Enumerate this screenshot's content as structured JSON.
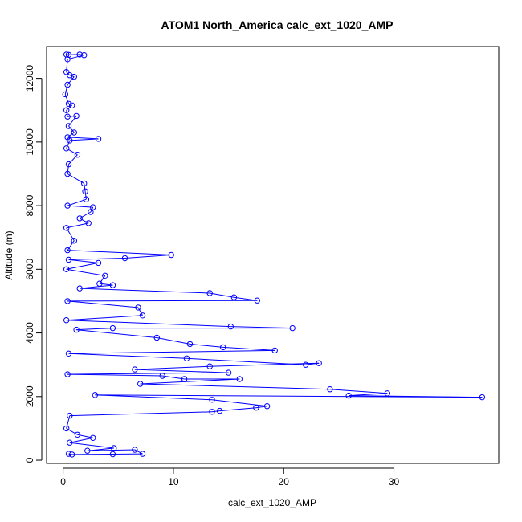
{
  "chart_data": {
    "type": "line",
    "title": "ATOM1 North_America calc_ext_1020_AMP",
    "xlabel": "calc_ext_1020_AMP",
    "ylabel": "Altitude (m)",
    "xlim": [
      -1.5,
      39.5
    ],
    "ylim": [
      -100,
      13000
    ],
    "xticks": [
      0,
      10,
      20,
      30
    ],
    "yticks": [
      0,
      2000,
      4000,
      6000,
      8000,
      10000,
      12000
    ],
    "grid": false,
    "line_color": "#0000ff",
    "marker": "open-circle",
    "series": [
      {
        "values": [
          [
            0.3,
            12750
          ],
          [
            0.5,
            12740
          ],
          [
            1.5,
            12750
          ],
          [
            1.9,
            12730
          ],
          [
            0.4,
            12600
          ],
          [
            0.3,
            12200
          ],
          [
            0.6,
            12100
          ],
          [
            1.0,
            12050
          ],
          [
            0.4,
            11800
          ],
          [
            0.2,
            11500
          ],
          [
            0.5,
            11200
          ],
          [
            0.8,
            11150
          ],
          [
            0.3,
            11000
          ],
          [
            0.4,
            10800
          ],
          [
            1.2,
            10820
          ],
          [
            0.5,
            10500
          ],
          [
            1.0,
            10300
          ],
          [
            0.4,
            10150
          ],
          [
            3.2,
            10100
          ],
          [
            0.6,
            10050
          ],
          [
            0.3,
            9800
          ],
          [
            1.3,
            9600
          ],
          [
            0.5,
            9300
          ],
          [
            0.4,
            9000
          ],
          [
            1.9,
            8700
          ],
          [
            2.0,
            8450
          ],
          [
            2.1,
            8200
          ],
          [
            0.4,
            8000
          ],
          [
            2.7,
            7950
          ],
          [
            2.5,
            7800
          ],
          [
            1.5,
            7600
          ],
          [
            2.3,
            7450
          ],
          [
            0.3,
            7300
          ],
          [
            1.0,
            6900
          ],
          [
            0.4,
            6600
          ],
          [
            9.8,
            6450
          ],
          [
            5.6,
            6350
          ],
          [
            0.5,
            6300
          ],
          [
            3.2,
            6200
          ],
          [
            0.3,
            6000
          ],
          [
            3.8,
            5800
          ],
          [
            3.3,
            5550
          ],
          [
            4.5,
            5500
          ],
          [
            1.5,
            5400
          ],
          [
            13.3,
            5250
          ],
          [
            15.5,
            5120
          ],
          [
            17.6,
            5020
          ],
          [
            0.4,
            5000
          ],
          [
            6.8,
            4800
          ],
          [
            7.2,
            4550
          ],
          [
            0.3,
            4400
          ],
          [
            15.2,
            4200
          ],
          [
            20.8,
            4150
          ],
          [
            4.5,
            4150
          ],
          [
            1.2,
            4100
          ],
          [
            8.5,
            3850
          ],
          [
            11.5,
            3650
          ],
          [
            14.5,
            3550
          ],
          [
            19.2,
            3450
          ],
          [
            0.5,
            3350
          ],
          [
            11.2,
            3200
          ],
          [
            22.0,
            3000
          ],
          [
            23.2,
            3050
          ],
          [
            13.3,
            2950
          ],
          [
            6.5,
            2850
          ],
          [
            15.0,
            2750
          ],
          [
            0.4,
            2700
          ],
          [
            9.0,
            2650
          ],
          [
            11.0,
            2550
          ],
          [
            16.0,
            2550
          ],
          [
            7.0,
            2400
          ],
          [
            24.2,
            2230
          ],
          [
            29.4,
            2100
          ],
          [
            25.9,
            2030
          ],
          [
            38.0,
            1980
          ],
          [
            2.9,
            2050
          ],
          [
            13.5,
            1900
          ],
          [
            18.5,
            1700
          ],
          [
            17.5,
            1650
          ],
          [
            14.2,
            1550
          ],
          [
            13.5,
            1520
          ],
          [
            0.6,
            1400
          ],
          [
            0.3,
            1000
          ],
          [
            1.3,
            800
          ],
          [
            2.7,
            700
          ],
          [
            0.6,
            550
          ],
          [
            4.6,
            380
          ],
          [
            2.2,
            300
          ],
          [
            6.5,
            330
          ],
          [
            7.2,
            200
          ],
          [
            4.5,
            190
          ],
          [
            0.8,
            180
          ],
          [
            0.5,
            200
          ]
        ]
      }
    ]
  }
}
